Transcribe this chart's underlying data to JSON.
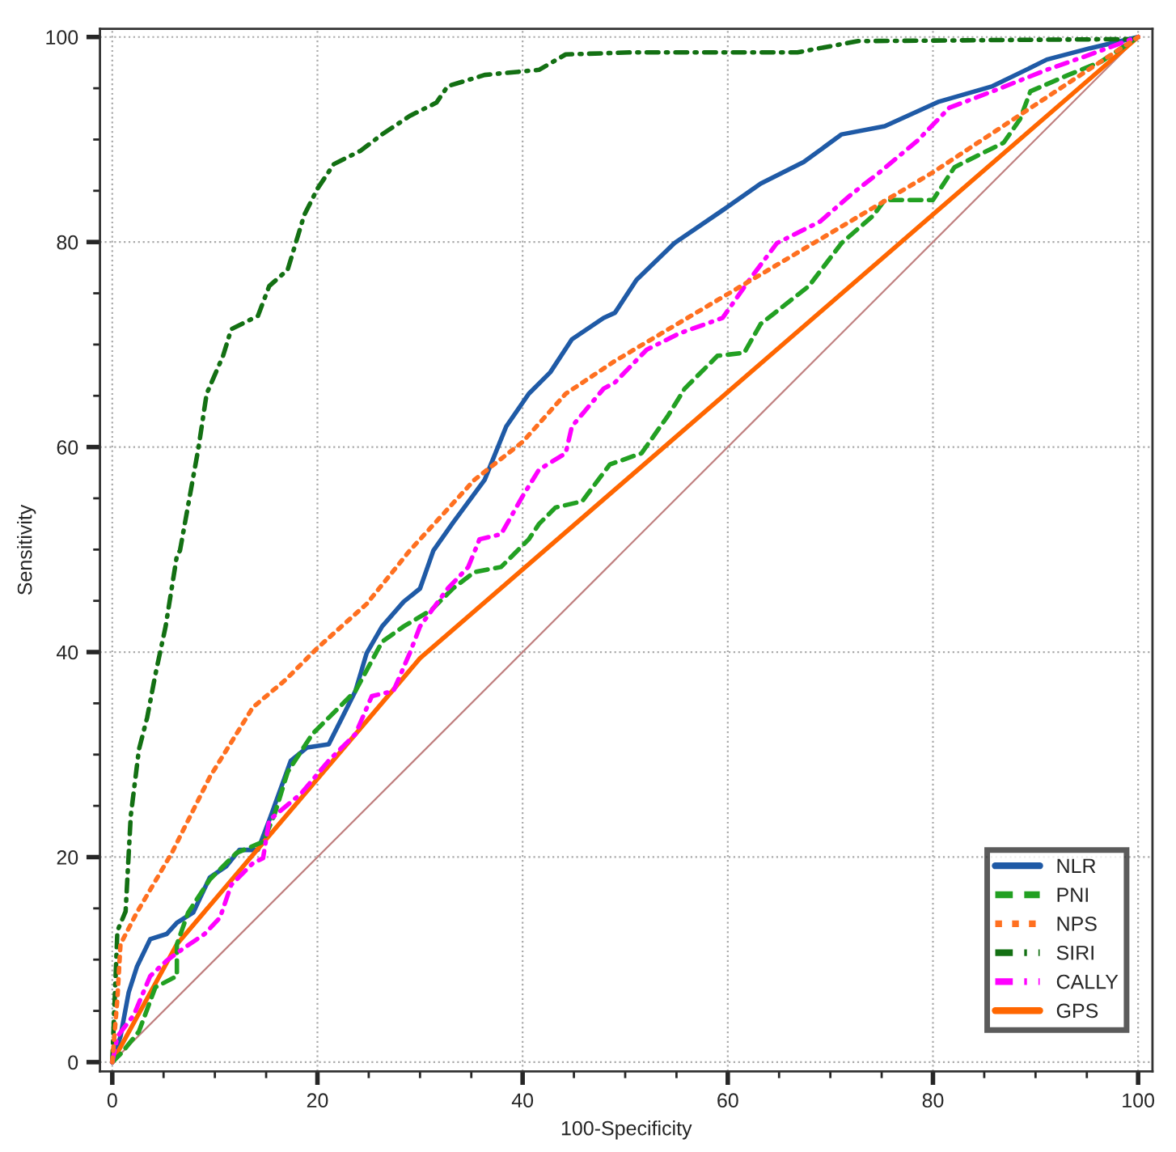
{
  "chart_data": {
    "type": "line",
    "xlabel": "100-Specificity",
    "ylabel": "Sensitivity",
    "xlim": [
      -1.2,
      101.4
    ],
    "ylim": [
      -0.9,
      100.8
    ],
    "xticks": [
      0,
      20,
      40,
      60,
      80,
      100
    ],
    "yticks": [
      0,
      20,
      40,
      60,
      80,
      100
    ],
    "grid": true,
    "legend": "bottom right",
    "marker": "none",
    "series": [
      {
        "name": "NLR",
        "color": "#1f5aa6",
        "line_style": "solid",
        "x": [
          0,
          0.8,
          1.6,
          2.4,
          3.7,
          5.3,
          6.3,
          7.9,
          9.5,
          11.1,
          12.4,
          14.2,
          15.3,
          17.4,
          19,
          21.1,
          22.4,
          23.7,
          24.8,
          26.3,
          28.4,
          30,
          31.3,
          33.2,
          36.3,
          38.4,
          40.6,
          42.7,
          44.8,
          47.9,
          49,
          51.1,
          54.8,
          59.5,
          63.2,
          67.4,
          71.1,
          75.3,
          80.6,
          85.8,
          89.5,
          91.1,
          95.3,
          100
        ],
        "values": [
          0,
          2.5,
          6.8,
          9.3,
          12,
          12.5,
          13.6,
          14.6,
          18,
          19.1,
          20.7,
          20.7,
          23.6,
          29.4,
          30.7,
          31,
          33.6,
          36.2,
          39.9,
          42.5,
          44.9,
          46.2,
          49.9,
          52.6,
          56.8,
          62,
          65.2,
          67.3,
          70.5,
          72.6,
          73.1,
          76.3,
          79.9,
          83.1,
          85.7,
          87.8,
          90.5,
          91.3,
          93.7,
          95.2,
          97,
          97.8,
          98.9,
          100
        ]
      },
      {
        "name": "PNI",
        "color": "#22a022",
        "line_style": "dashed",
        "x": [
          0,
          1,
          2.6,
          4.2,
          6.3,
          6.3,
          7.4,
          9.5,
          12.1,
          14.7,
          15.8,
          17.1,
          19.5,
          22.1,
          23.7,
          26.3,
          28.4,
          31.1,
          33.2,
          35.3,
          37.9,
          40.6,
          41.6,
          43.2,
          45.8,
          48.5,
          51.6,
          54.2,
          55.8,
          59,
          61.6,
          63.2,
          67.9,
          71.1,
          74.2,
          75.3,
          80,
          82.1,
          86.9,
          88.5,
          89.5,
          93.2,
          96.4,
          100
        ],
        "values": [
          0,
          1,
          3,
          7.3,
          8.4,
          11.5,
          14.6,
          17.8,
          20.4,
          21.5,
          24.1,
          28.3,
          32,
          34.6,
          36.2,
          41,
          42.5,
          44.1,
          46.2,
          47.8,
          48.3,
          51,
          52.5,
          54.1,
          54.7,
          58.3,
          59.4,
          63.1,
          65.7,
          68.9,
          69.2,
          72,
          75.7,
          79.9,
          82.6,
          84.1,
          84.1,
          87.3,
          89.7,
          92,
          94.7,
          96.3,
          97.6,
          100
        ]
      },
      {
        "name": "NPS",
        "color": "#ff7020",
        "line_style": "dotted",
        "x": [
          0,
          0.5,
          0.8,
          2.4,
          5.8,
          9.5,
          13.7,
          16.9,
          20,
          24.8,
          29,
          35.3,
          40,
          44.2,
          49,
          80,
          100
        ],
        "values": [
          0,
          6.2,
          11.5,
          14.6,
          20.4,
          27.8,
          34.6,
          37.3,
          40.4,
          44.7,
          49.9,
          56.8,
          60.5,
          65.2,
          68.4,
          86.8,
          100
        ]
      },
      {
        "name": "SIRI",
        "color": "#137013",
        "line_style": "dashdot",
        "x": [
          0,
          0.5,
          1.3,
          1.8,
          2.6,
          3.4,
          4.2,
          5.2,
          6.3,
          6.6,
          8.4,
          9.2,
          10.8,
          11.6,
          14.2,
          15.3,
          17.1,
          18.7,
          20,
          21.6,
          24.2,
          26.3,
          29,
          31.6,
          32.7,
          36.3,
          41.6,
          44.2,
          50.6,
          66.8,
          72.7,
          99.5,
          100
        ],
        "values": [
          0,
          12.8,
          14.7,
          24,
          30.5,
          33.6,
          37.8,
          42.5,
          49.4,
          49.9,
          59.9,
          65.2,
          68.9,
          71.5,
          72.8,
          75.7,
          77.3,
          82.6,
          85.2,
          87.6,
          88.9,
          90.5,
          92.3,
          93.6,
          95.2,
          96.3,
          96.8,
          98.3,
          98.5,
          98.5,
          99.6,
          99.8,
          100
        ]
      },
      {
        "name": "CALLY",
        "color": "#ff00ff",
        "line_style": "dashdot",
        "x": [
          0,
          0.5,
          2.1,
          3.7,
          5.3,
          6.8,
          9,
          10.5,
          11.6,
          13.7,
          14.7,
          15.3,
          18.4,
          21.1,
          23.7,
          25.3,
          27.4,
          29,
          30,
          32.7,
          34.7,
          35.8,
          37.9,
          40,
          41.6,
          44.2,
          44.8,
          47.9,
          49,
          52.1,
          55.3,
          59.5,
          62.1,
          64.8,
          69,
          72.1,
          74.8,
          78.5,
          81.6,
          85.8,
          91.1,
          94.8,
          100
        ],
        "values": [
          0,
          2.5,
          4.6,
          8.4,
          9.9,
          11,
          12.5,
          14.1,
          17.3,
          19.4,
          19.9,
          23.6,
          26.2,
          29.4,
          32,
          35.7,
          36.2,
          39.9,
          42.5,
          46.2,
          48.3,
          51,
          51.5,
          55.2,
          57.8,
          59.4,
          62,
          65.7,
          66.3,
          69.5,
          71.1,
          72.6,
          76.3,
          79.9,
          82,
          84.7,
          86.8,
          89.9,
          93.1,
          94.7,
          96.8,
          98.1,
          100
        ]
      },
      {
        "name": "GPS",
        "color": "#ff6600",
        "line_style": "solid",
        "x": [
          0,
          6.3,
          30,
          100
        ],
        "values": [
          0,
          11.5,
          39.4,
          100
        ]
      },
      {
        "color": "#c08080",
        "line_style": "solid",
        "x": [
          0,
          100
        ],
        "values": [
          0,
          100
        ]
      }
    ]
  }
}
